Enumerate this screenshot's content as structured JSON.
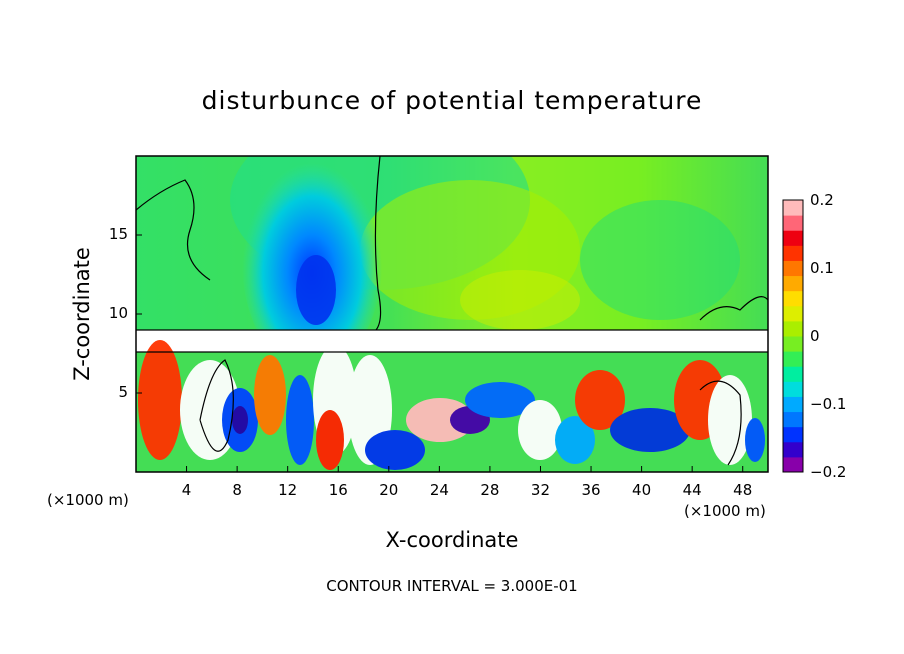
{
  "chart_data": {
    "type": "heatmap",
    "title": "disturbunce of potential temperature",
    "xlabel": "X-coordinate",
    "ylabel": "Z-coordinate",
    "x_unit": "(×1000 m)",
    "x_unit_right": "(×1000 m)",
    "xlim": [
      0,
      50
    ],
    "ylim": [
      0,
      20
    ],
    "x_ticks": [
      "4",
      "8",
      "12",
      "16",
      "20",
      "24",
      "28",
      "32",
      "36",
      "40",
      "44",
      "48"
    ],
    "y_ticks": [
      "5",
      "10",
      "15"
    ],
    "colorbar": {
      "range": [
        -0.2,
        0.2
      ],
      "tick_labels": [
        "0.2",
        "0.1",
        "0",
        "−0.1",
        "−0.2"
      ],
      "colors": [
        "#8800aa",
        "#3300cc",
        "#0033ff",
        "#0077ff",
        "#00aaff",
        "#00dddd",
        "#00eea0",
        "#33ee55",
        "#77ee22",
        "#aaee00",
        "#ddee00",
        "#ffdd00",
        "#ffaa00",
        "#ff7700",
        "#ff3300",
        "#ee0011",
        "#ff6677",
        "#ffbbbb"
      ]
    },
    "annotation": "CONTOUR INTERVAL = 3.000E-01",
    "field_description_values": {
      "upper_layer_background": 0.0,
      "cold_plume_center_x": 14,
      "cold_plume_min": -0.1,
      "stable_layer_height": 9
    }
  }
}
